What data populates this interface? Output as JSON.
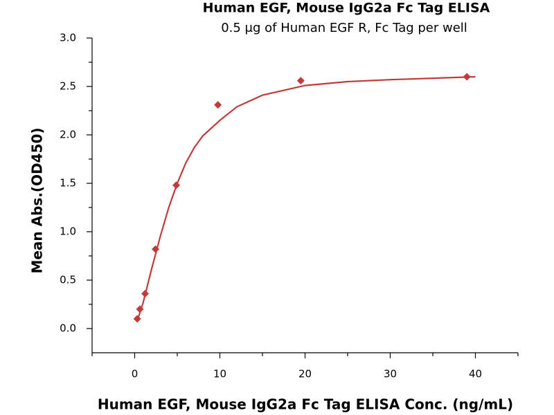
{
  "chart_data": {
    "type": "scatter",
    "title": "Human EGF, Mouse IgG2a Fc Tag ELISA",
    "subtitle": "0.5 μg of Human EGF R, Fc Tag per well",
    "xlabel": "Human EGF, Mouse IgG2a Fc Tag ELISA Conc. (ng/mL)",
    "ylabel": "Mean Abs.(OD450)",
    "x": [
      0.3,
      0.61,
      1.22,
      2.44,
      4.88,
      9.77,
      19.5,
      39
    ],
    "values": [
      0.1,
      0.2,
      0.36,
      0.82,
      1.48,
      2.31,
      2.56,
      2.6
    ],
    "color": "#c23b3b",
    "fit_x": [
      0.3,
      1,
      2,
      3,
      4,
      5,
      6,
      7,
      8,
      10,
      12,
      15,
      20,
      25,
      30,
      40
    ],
    "fit_y": [
      0.08,
      0.27,
      0.62,
      0.95,
      1.25,
      1.5,
      1.71,
      1.87,
      1.99,
      2.15,
      2.29,
      2.41,
      2.51,
      2.55,
      2.57,
      2.6
    ],
    "xlim": [
      -5,
      45
    ],
    "xticks": [
      0,
      10,
      20,
      30,
      40
    ],
    "xminorticks": [
      -5,
      5,
      15,
      25,
      35,
      45
    ],
    "ylim": [
      -0.25,
      3.0
    ],
    "yticks": [
      {
        "value": 0,
        "label": "0.0"
      },
      {
        "value": 0.5,
        "label": "0.5"
      },
      {
        "value": 1,
        "label": "1.0"
      },
      {
        "value": 1.5,
        "label": "1.5"
      },
      {
        "value": 2,
        "label": "2.0"
      },
      {
        "value": 2.5,
        "label": "2.5"
      },
      {
        "value": 3,
        "label": "3.0"
      }
    ],
    "yminorticks": [
      0.25,
      0.75,
      1.25,
      1.75,
      2.25,
      2.75
    ]
  }
}
